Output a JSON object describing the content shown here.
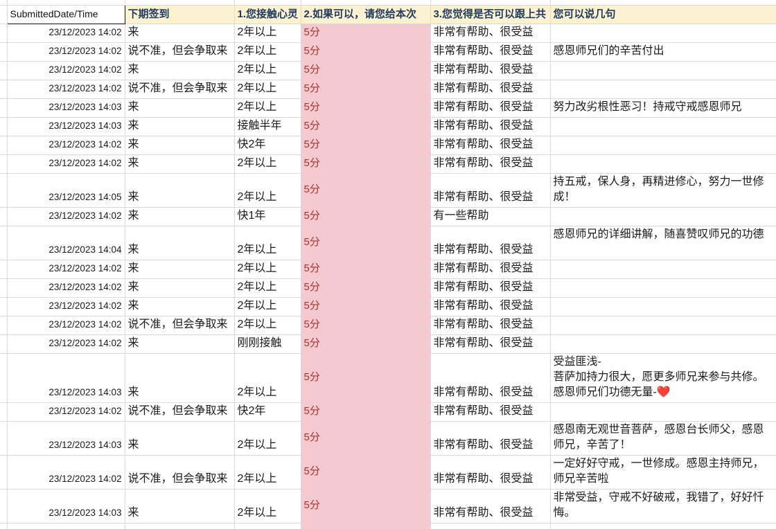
{
  "sheet": {
    "colors": {
      "header_bg": "#fcf2d2",
      "header_text": "#1f3a5f",
      "score_bg": "#f5c9d0",
      "score_text": "#a5342c",
      "gridline": "#d9d9d9",
      "selected_cell_border": "#111111"
    },
    "columns": {
      "submitted": "SubmittedDate/Time",
      "next_checkin": "下期签到",
      "q1_contact_duration": "1.您接触心灵",
      "q2_score": "2.如果可以，请您给本次",
      "q3_keep_up": "3.您觉得是否可以跟上共",
      "comments": "您可以说几句"
    },
    "rows": [
      {
        "date": "23/12/2023 14:02",
        "checkin": "来",
        "duration": "2年以上",
        "score": "5分",
        "helpful": "非常有帮助、很受益",
        "comment": ""
      },
      {
        "date": "23/12/2023 14:02",
        "checkin": "说不准，但会争取来",
        "duration": "2年以上",
        "score": "5分",
        "helpful": "非常有帮助、很受益",
        "comment": "感恩师兄们的辛苦付出"
      },
      {
        "date": "23/12/2023 14:02",
        "checkin": "来",
        "duration": "2年以上",
        "score": "5分",
        "helpful": "非常有帮助、很受益",
        "comment": ""
      },
      {
        "date": "23/12/2023 14:02",
        "checkin": "说不准，但会争取来",
        "duration": "2年以上",
        "score": "5分",
        "helpful": "非常有帮助、很受益",
        "comment": ""
      },
      {
        "date": "23/12/2023 14:03",
        "checkin": "来",
        "duration": "2年以上",
        "score": "5分",
        "helpful": "非常有帮助、很受益",
        "comment": "努力改劣根性恶习！持戒守戒感恩师兄"
      },
      {
        "date": "23/12/2023 14:03",
        "checkin": "来",
        "duration": "接触半年",
        "score": "5分",
        "helpful": "非常有帮助、很受益",
        "comment": ""
      },
      {
        "date": "23/12/2023 14:02",
        "checkin": "来",
        "duration": "快2年",
        "score": "5分",
        "helpful": "非常有帮助、很受益",
        "comment": ""
      },
      {
        "date": "23/12/2023 14:02",
        "checkin": "来",
        "duration": "2年以上",
        "score": "5分",
        "helpful": "非常有帮助、很受益",
        "comment": ""
      },
      {
        "date": "23/12/2023 14:05",
        "checkin": "来",
        "duration": "2年以上",
        "score": "5分",
        "helpful": "非常有帮助、很受益",
        "comment": "持五戒，保人身，再精进修心，努力一世修成！"
      },
      {
        "date": "23/12/2023 14:02",
        "checkin": "来",
        "duration": "快1年",
        "score": "5分",
        "helpful": "有一些帮助",
        "comment": ""
      },
      {
        "date": "23/12/2023 14:04",
        "checkin": "来",
        "duration": "2年以上",
        "score": "5分",
        "helpful": "非常有帮助、很受益",
        "comment": "感恩师兄的详细讲解，随喜赞叹师兄的功德\n"
      },
      {
        "date": "23/12/2023 14:02",
        "checkin": "来",
        "duration": "2年以上",
        "score": "5分",
        "helpful": "非常有帮助、很受益",
        "comment": ""
      },
      {
        "date": "23/12/2023 14:02",
        "checkin": "来",
        "duration": "2年以上",
        "score": "5分",
        "helpful": "非常有帮助、很受益",
        "comment": ""
      },
      {
        "date": "23/12/2023 14:02",
        "checkin": "来",
        "duration": "2年以上",
        "score": "5分",
        "helpful": "非常有帮助、很受益",
        "comment": ""
      },
      {
        "date": "23/12/2023 14:02",
        "checkin": "说不准，但会争取来",
        "duration": "2年以上",
        "score": "5分",
        "helpful": "非常有帮助、很受益",
        "comment": ""
      },
      {
        "date": "23/12/2023 14:02",
        "checkin": "来",
        "duration": "刚刚接触",
        "score": "5分",
        "helpful": "非常有帮助、很受益",
        "comment": ""
      },
      {
        "date": "23/12/2023 14:03",
        "checkin": "来",
        "duration": "2年以上",
        "score": "5分",
        "helpful": "非常有帮助、很受益",
        "comment": "受益匪浅-\n菩萨加持力很大，愿更多师兄来参与共修。感恩师兄们功德无量-❤️"
      },
      {
        "date": "23/12/2023 14:02",
        "checkin": "说不准，但会争取来",
        "duration": "快2年",
        "score": "5分",
        "helpful": "非常有帮助、很受益",
        "comment": ""
      },
      {
        "date": "23/12/2023 14:03",
        "checkin": "来",
        "duration": "2年以上",
        "score": "5分",
        "helpful": "非常有帮助、很受益",
        "comment": "感恩南无观世音菩萨，感恩台长师父，感恩师兄，辛苦了！"
      },
      {
        "date": "23/12/2023 14:02",
        "checkin": "说不准，但会争取来",
        "duration": "2年以上",
        "score": "5分",
        "helpful": "非常有帮助、很受益",
        "comment": "一定好好守戒，一世修成。感恩主持师兄，师兄辛苦啦"
      },
      {
        "date": "23/12/2023 14:03",
        "checkin": "来",
        "duration": "2年以上",
        "score": "5分",
        "helpful": "非常有帮助、很受益",
        "comment": "非常受益，守戒不好破戒，我错了，好好忏悔。"
      }
    ]
  }
}
